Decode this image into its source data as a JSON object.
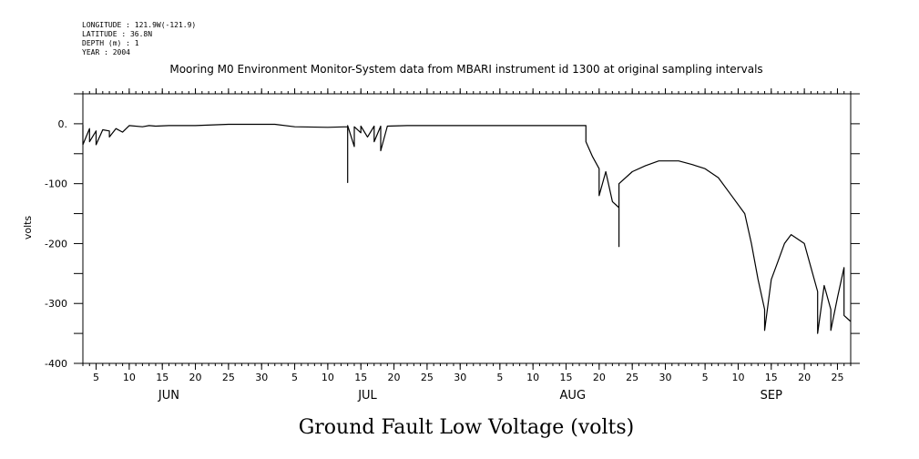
{
  "meta": {
    "longitude": "LONGITUDE : 121.9W(-121.9)",
    "latitude": "LATITUDE : 36.8N",
    "depth": "DEPTH (m) : 1",
    "year": "YEAR : 2004"
  },
  "chart_data": {
    "type": "line",
    "title": "Mooring M0 Environment Monitor-System data from MBARI instrument id 1300 at original sampling intervals",
    "xlabel": "Ground Fault Low Voltage (volts)",
    "ylabel": "volts",
    "ylim": [
      -400,
      50
    ],
    "xlim": [
      "2004-06-03",
      "2004-09-27"
    ],
    "yticks": [
      0,
      -100,
      -200,
      -300,
      -400
    ],
    "ytick_labels": [
      "0.",
      "-100",
      "-200",
      "-300",
      "-400"
    ],
    "x_date_ticks": [
      {
        "date": "2004-06-05",
        "label": "5"
      },
      {
        "date": "2004-06-10",
        "label": "10"
      },
      {
        "date": "2004-06-15",
        "label": "15"
      },
      {
        "date": "2004-06-20",
        "label": "20"
      },
      {
        "date": "2004-06-25",
        "label": "25"
      },
      {
        "date": "2004-06-30",
        "label": "30"
      },
      {
        "date": "2004-07-05",
        "label": "5"
      },
      {
        "date": "2004-07-10",
        "label": "10"
      },
      {
        "date": "2004-07-15",
        "label": "15"
      },
      {
        "date": "2004-07-20",
        "label": "20"
      },
      {
        "date": "2004-07-25",
        "label": "25"
      },
      {
        "date": "2004-07-30",
        "label": "30"
      },
      {
        "date": "2004-08-05",
        "label": "5"
      },
      {
        "date": "2004-08-10",
        "label": "10"
      },
      {
        "date": "2004-08-15",
        "label": "15"
      },
      {
        "date": "2004-08-20",
        "label": "20"
      },
      {
        "date": "2004-08-25",
        "label": "25"
      },
      {
        "date": "2004-08-30",
        "label": "30"
      },
      {
        "date": "2004-09-05",
        "label": "5"
      },
      {
        "date": "2004-09-10",
        "label": "10"
      },
      {
        "date": "2004-09-15",
        "label": "15"
      },
      {
        "date": "2004-09-20",
        "label": "20"
      },
      {
        "date": "2004-09-25",
        "label": "25"
      }
    ],
    "month_labels": [
      {
        "date": "2004-06-16",
        "label": "JUN"
      },
      {
        "date": "2004-07-16",
        "label": "JUL"
      },
      {
        "date": "2004-08-16",
        "label": "AUG"
      },
      {
        "date": "2004-09-15",
        "label": "SEP"
      }
    ],
    "grid": false,
    "series": [
      {
        "color": "#000000",
        "points": [
          [
            "2004-06-03",
            -2
          ],
          [
            "2004-06-03",
            -35
          ],
          [
            "2004-06-04",
            -8
          ],
          [
            "2004-06-04",
            -30
          ],
          [
            "2004-06-05",
            -12
          ],
          [
            "2004-06-05",
            -35
          ],
          [
            "2004-06-06",
            -10
          ],
          [
            "2004-06-07",
            -12
          ],
          [
            "2004-06-07",
            -22
          ],
          [
            "2004-06-08",
            -8
          ],
          [
            "2004-06-09",
            -14
          ],
          [
            "2004-06-10",
            -3
          ],
          [
            "2004-06-12",
            -5
          ],
          [
            "2004-06-13",
            -3
          ],
          [
            "2004-06-14",
            -4
          ],
          [
            "2004-06-16",
            -3
          ],
          [
            "2004-06-20",
            -3
          ],
          [
            "2004-06-25",
            -1
          ],
          [
            "2004-07-02",
            -1
          ],
          [
            "2004-07-05",
            -5
          ],
          [
            "2004-07-10",
            -6
          ],
          [
            "2004-07-13",
            -5
          ],
          [
            "2004-07-13",
            -98
          ],
          [
            "2004-07-13",
            -3
          ],
          [
            "2004-07-14",
            -38
          ],
          [
            "2004-07-14",
            -5
          ],
          [
            "2004-07-15",
            -15
          ],
          [
            "2004-07-15",
            -4
          ],
          [
            "2004-07-16",
            -22
          ],
          [
            "2004-07-17",
            -4
          ],
          [
            "2004-07-17",
            -30
          ],
          [
            "2004-07-18",
            -4
          ],
          [
            "2004-07-18",
            -45
          ],
          [
            "2004-07-19",
            -4
          ],
          [
            "2004-07-22",
            -3
          ],
          [
            "2004-07-28",
            -3
          ],
          [
            "2004-08-05",
            -3
          ],
          [
            "2004-08-12",
            -3
          ],
          [
            "2004-08-18",
            -3
          ],
          [
            "2004-08-18",
            -30
          ],
          [
            "2004-08-19",
            -55
          ],
          [
            "2004-08-20",
            -75
          ],
          [
            "2004-08-20",
            -120
          ],
          [
            "2004-08-21",
            -80
          ],
          [
            "2004-08-22",
            -130
          ],
          [
            "2004-08-23",
            -140
          ],
          [
            "2004-08-23",
            -205
          ],
          [
            "2004-08-23",
            -100
          ],
          [
            "2004-08-25",
            -80
          ],
          [
            "2004-08-27",
            -70
          ],
          [
            "2004-08-29",
            -62
          ],
          [
            "2004-09-01",
            -62
          ],
          [
            "2004-09-03",
            -68
          ],
          [
            "2004-09-05",
            -75
          ],
          [
            "2004-09-07",
            -90
          ],
          [
            "2004-09-09",
            -120
          ],
          [
            "2004-09-11",
            -150
          ],
          [
            "2004-09-12",
            -200
          ],
          [
            "2004-09-13",
            -260
          ],
          [
            "2004-09-14",
            -310
          ],
          [
            "2004-09-14",
            -345
          ],
          [
            "2004-09-15",
            -260
          ],
          [
            "2004-09-16",
            -230
          ],
          [
            "2004-09-17",
            -200
          ],
          [
            "2004-09-18",
            -185
          ],
          [
            "2004-09-20",
            -200
          ],
          [
            "2004-09-21",
            -240
          ],
          [
            "2004-09-22",
            -280
          ],
          [
            "2004-09-22",
            -350
          ],
          [
            "2004-09-23",
            -270
          ],
          [
            "2004-09-24",
            -310
          ],
          [
            "2004-09-24",
            -345
          ],
          [
            "2004-09-25",
            -290
          ],
          [
            "2004-09-26",
            -240
          ],
          [
            "2004-09-26",
            -320
          ],
          [
            "2004-09-27",
            -330
          ]
        ]
      }
    ]
  }
}
